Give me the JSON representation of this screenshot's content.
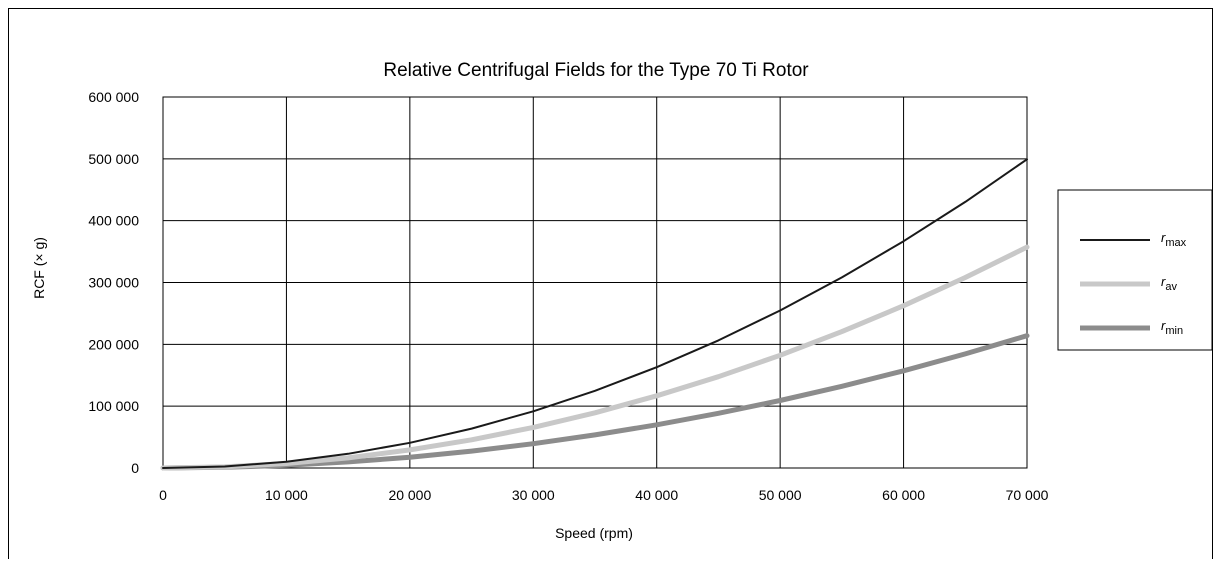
{
  "chart_data": {
    "type": "line",
    "title": "Relative Centrifugal Fields for the Type 70 Ti Rotor",
    "xlabel": "Speed (rpm)",
    "ylabel": "RCF (× g)",
    "xlim": [
      0,
      70000
    ],
    "ylim": [
      0,
      600000
    ],
    "x_ticks": [
      0,
      10000,
      20000,
      30000,
      40000,
      50000,
      60000,
      70000
    ],
    "x_tick_labels": [
      "0",
      "10 000",
      "20 000",
      "30 000",
      "40 000",
      "50 000",
      "60 000",
      "70 000"
    ],
    "y_ticks": [
      0,
      100000,
      200000,
      300000,
      400000,
      500000,
      600000
    ],
    "y_tick_labels": [
      "0",
      "100 000",
      "200 000",
      "300 000",
      "400 000",
      "500 000",
      "600 000"
    ],
    "grid": true,
    "legend_position": "right",
    "x": [
      0,
      5000,
      10000,
      15000,
      20000,
      25000,
      30000,
      35000,
      40000,
      45000,
      50000,
      55000,
      60000,
      65000,
      70000
    ],
    "series": [
      {
        "name_main": "r",
        "name_sub": "max",
        "color": "#1a1a1a",
        "values": [
          0,
          2500,
          10200,
          22900,
          40800,
          63700,
          91700,
          124800,
          163000,
          206300,
          254700,
          308200,
          366800,
          430400,
          499200
        ]
      },
      {
        "name_main": "r",
        "name_sub": "av",
        "color": "#c8c8c8",
        "values": [
          0,
          1800,
          7300,
          16400,
          29200,
          45600,
          65600,
          89300,
          116700,
          147700,
          182300,
          220600,
          262500,
          308100,
          357300
        ]
      },
      {
        "name_main": "r",
        "name_sub": "min",
        "color": "#8c8c8c",
        "values": [
          0,
          1100,
          4400,
          9800,
          17500,
          27300,
          39300,
          53500,
          69900,
          88400,
          109200,
          132100,
          157200,
          184500,
          214000
        ]
      }
    ]
  }
}
